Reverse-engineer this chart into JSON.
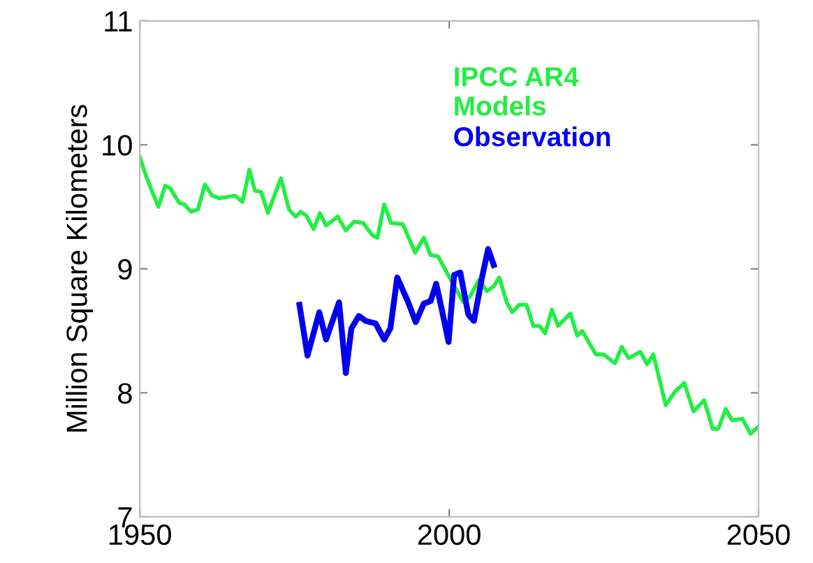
{
  "chart_data": {
    "type": "line",
    "ylabel": "Million Square Kilometers",
    "xlim": [
      1950,
      2050
    ],
    "xticks": [
      1950,
      2000,
      2050
    ],
    "ylim": [
      7,
      11
    ],
    "yticks": [
      7,
      8,
      9,
      10,
      11
    ],
    "grid": false,
    "legend": "top right",
    "marker": "none",
    "line_style": "solid",
    "series": [
      {
        "name": "IPCC AR4\nModels",
        "color": "#22ee44",
        "x": [
          1950,
          1951,
          1952,
          1953.0,
          1954.1,
          1954.9,
          1956.4,
          1957.2,
          1958.3,
          1959.4,
          1960.5,
          1961.7,
          1962.8,
          1965.4,
          1966.6,
          1967.7,
          1968.6,
          1969.6,
          1970.7,
          1972.8,
          1974.1,
          1975.2,
          1976.0,
          1976.9,
          1978.1,
          1979.1,
          1980.1,
          1982.0,
          1983.3,
          1984.6,
          1986.1,
          1987.6,
          1988.4,
          1989.5,
          1990.6,
          1992.5,
          1994.5,
          1995.9,
          1997.0,
          1998.2,
          2000.4,
          2002.3,
          2003.4,
          2004.8,
          2006.1,
          2007.2,
          2008.1,
          2009.3,
          2010.2,
          2011.3,
          2012.5,
          2013.6,
          2014.6,
          2015.5,
          2016.6,
          2017.6,
          2019.6,
          2020.7,
          2021.5,
          2023.7,
          2024.9,
          2026.8,
          2027.9,
          2029.0,
          2030.9,
          2032.0,
          2033.0,
          2035.0,
          2036.5,
          2038.0,
          2039.5,
          2041.2,
          2042.6,
          2043.5,
          2044.7,
          2045.7,
          2047.4,
          2048.7,
          2050.0
        ],
        "values": [
          9.9,
          9.75,
          9.62,
          9.5,
          9.67,
          9.65,
          9.53,
          9.52,
          9.46,
          9.48,
          9.68,
          9.59,
          9.57,
          9.59,
          9.54,
          9.8,
          9.63,
          9.62,
          9.45,
          9.73,
          9.48,
          9.42,
          9.46,
          9.43,
          9.32,
          9.45,
          9.35,
          9.42,
          9.31,
          9.38,
          9.37,
          9.27,
          9.25,
          9.52,
          9.37,
          9.36,
          9.13,
          9.25,
          9.11,
          9.1,
          8.9,
          8.73,
          8.78,
          8.91,
          8.82,
          8.86,
          8.93,
          8.73,
          8.65,
          8.71,
          8.71,
          8.54,
          8.54,
          8.48,
          8.67,
          8.54,
          8.64,
          8.46,
          8.5,
          8.31,
          8.31,
          8.24,
          8.37,
          8.28,
          8.33,
          8.23,
          8.31,
          7.9,
          8.01,
          8.08,
          7.85,
          7.94,
          7.71,
          7.71,
          7.87,
          7.78,
          7.79,
          7.67,
          7.73
        ]
      },
      {
        "name": "Observation",
        "color": "#0000ee",
        "x": [
          1975.8,
          1977.1,
          1979.0,
          1980.1,
          1982.2,
          1983.3,
          1984.2,
          1985.4,
          1986.5,
          1988.1,
          1989.5,
          1990.5,
          1991.6,
          1993.3,
          1994.6,
          1995.9,
          1997.0,
          1997.9,
          1998.9,
          1999.9,
          2000.8,
          2001.8,
          2003.1,
          2004.0,
          2005.3,
          2006.3,
          2007.2
        ],
        "values": [
          8.71,
          8.3,
          8.65,
          8.43,
          8.73,
          8.16,
          8.52,
          8.62,
          8.58,
          8.56,
          8.43,
          8.52,
          8.93,
          8.74,
          8.57,
          8.72,
          8.74,
          8.88,
          8.65,
          8.41,
          8.95,
          8.97,
          8.63,
          8.58,
          8.93,
          9.16,
          9.03
        ]
      }
    ]
  }
}
